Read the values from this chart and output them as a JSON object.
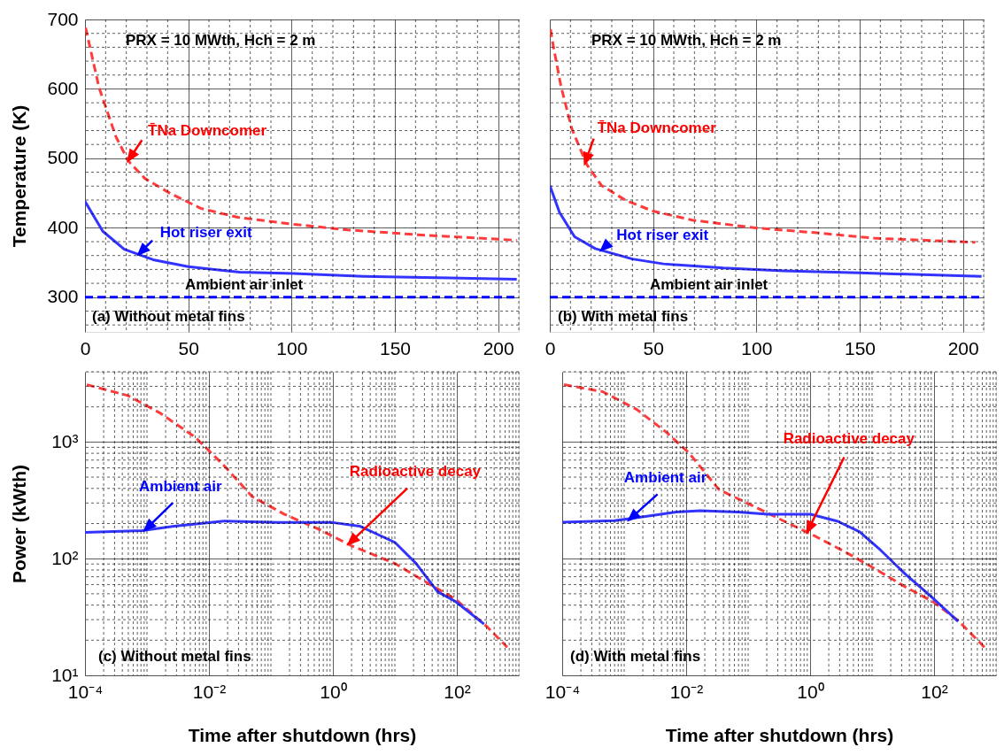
{
  "chart_data": [
    {
      "type": "line",
      "ylabel": "Temperature (K)",
      "xlim": [
        0,
        210
      ],
      "xticks": [
        0,
        50,
        100,
        150,
        200
      ],
      "ylim": [
        250,
        700
      ],
      "yticks": [
        300,
        400,
        500,
        600,
        700
      ],
      "grid": true,
      "line_style": "solid",
      "series": [
        {
          "color": "#ff3b3b",
          "line_style": "dashed",
          "x": [
            0.3,
            6.8,
            15,
            21,
            29,
            41,
            56,
            74,
            101,
            127,
            161,
            209
          ],
          "values": [
            688,
            602,
            531,
            496,
            471,
            450,
            428,
            415,
            405,
            397,
            390,
            382
          ]
        },
        {
          "color": "#3333ff",
          "x": [
            0,
            8.6,
            19,
            33,
            50,
            75,
            101,
            135,
            170,
            209
          ],
          "values": [
            438,
            395,
            369,
            354,
            344,
            336,
            334,
            330,
            328,
            326
          ]
        },
        {
          "color": "#0000ff",
          "line_style": "dashed",
          "x": [
            0,
            209
          ],
          "values": [
            300,
            300
          ]
        }
      ],
      "annotations": [
        "PRX = 10 MWth, Hch = 2 m",
        {
          "text": "T̄Na Downcomer",
          "x": 21,
          "y": 497
        },
        {
          "text": "Hot riser exit",
          "x": 26,
          "y": 362
        },
        {
          "text": "Ambient air inlet",
          "x": 77,
          "y": 300
        },
        "(a) Without metal fins"
      ]
    },
    {
      "type": "line",
      "xlim": [
        0,
        210
      ],
      "xticks": [
        0,
        50,
        100,
        150,
        200
      ],
      "ylim": [
        250,
        700
      ],
      "yticks": [
        300,
        400,
        500,
        600,
        700
      ],
      "grid": true,
      "tick_labels": "x",
      "line_style": "solid",
      "series": [
        {
          "color": "#ff3b3b",
          "line_style": "dashed",
          "x": [
            0.3,
            1.8,
            5.4,
            10.6,
            17.9,
            25,
            37,
            50,
            69,
            99,
            128,
            157,
            206
          ],
          "values": [
            686,
            660,
            604,
            543,
            491,
            461,
            439,
            424,
            411,
            400,
            393,
            385,
            379
          ]
        },
        {
          "color": "#3333ff",
          "x": [
            0,
            4.7,
            12,
            22,
            40,
            55,
            84,
            113,
            150,
            209
          ],
          "values": [
            461,
            422,
            387,
            370,
            355,
            348,
            342,
            338,
            335,
            330
          ]
        },
        {
          "color": "#0000ff",
          "line_style": "dashed",
          "x": [
            0,
            209
          ],
          "values": [
            300,
            300
          ]
        }
      ],
      "annotations": [
        "PRX = 10 MWth, Hch = 2 m",
        {
          "text": "T̄Na Downcomer",
          "x": 17,
          "y": 493
        },
        {
          "text": "Hot riser exit",
          "x": 25,
          "y": 368
        },
        {
          "text": "Ambient air inlet",
          "x": 77,
          "y": 300
        },
        "(b) With metal fins"
      ]
    },
    {
      "type": "line",
      "xlabel": "Time after shutdown (hrs)",
      "ylabel": "Power (kWth)",
      "log": "xy",
      "xlim": [
        0.0001,
        1000
      ],
      "xticks": [
        {
          "value": 0.0001,
          "label": "10⁻⁴"
        },
        {
          "value": 0.01,
          "label": "10⁻²"
        },
        {
          "value": 1,
          "label": "10⁰"
        },
        {
          "value": 100,
          "label": "10²"
        }
      ],
      "ylim": [
        10,
        4000
      ],
      "yticks": [
        {
          "value": 10,
          "label": "10¹"
        },
        {
          "value": 100,
          "label": "10²"
        },
        {
          "value": 1000,
          "label": "10³"
        }
      ],
      "grid": true,
      "line_style": "solid",
      "series": [
        {
          "color": "#ff3b3b",
          "line_style": "dashed",
          "x": [
            0.000107,
            0.00049,
            0.0016,
            0.006,
            0.0174,
            0.05,
            0.166,
            0.55,
            2.0,
            10,
            37,
            95,
            310,
            650
          ],
          "values": [
            3100,
            2500,
            1780,
            1100,
            630,
            340,
            240,
            182,
            129,
            91,
            60,
            45,
            26,
            17.4
          ]
        },
        {
          "color": "#3333ff",
          "x": [
            0.0001,
            0.00083,
            0.00275,
            0.0174,
            0.126,
            1.0,
            2.7,
            10,
            22,
            49,
            95,
            275
          ],
          "values": [
            168,
            174,
            190,
            210,
            204,
            204,
            190,
            138,
            91,
            52,
            43,
            27.5
          ]
        }
      ],
      "annotations": [
        {
          "text": "Ambient air",
          "x": 0.00093,
          "y": 176
        },
        {
          "text": "Radioactive decay",
          "x": 1.8,
          "y": 134
        },
        "(c) Without metal fins"
      ]
    },
    {
      "type": "line",
      "xlabel": "Time after shutdown (hrs)",
      "log": "xy",
      "xlim": [
        0.0001,
        1000
      ],
      "xticks": [
        {
          "value": 0.0001,
          "label": "10⁻⁴"
        },
        {
          "value": 0.01,
          "label": "10⁻²"
        },
        {
          "value": 1,
          "label": "10⁰"
        },
        {
          "value": 100,
          "label": "10²"
        }
      ],
      "ylim": [
        10,
        4000
      ],
      "yticks": [
        10,
        100,
        1000
      ],
      "grid": true,
      "tick_labels": "x",
      "line_style": "solid",
      "series": [
        {
          "color": "#ff3b3b",
          "line_style": "dashed",
          "x": [
            0.000107,
            0.00045,
            0.0016,
            0.0049,
            0.011,
            0.034,
            0.135,
            0.42,
            1.02,
            3.6,
            11.5,
            35,
            98,
            245,
            680
          ],
          "values": [
            3100,
            2700,
            1900,
            1200,
            810,
            390,
            275,
            204,
            163,
            115,
            81,
            57,
            42.5,
            29.5,
            17
          ]
        },
        {
          "color": "#3333ff",
          "x": [
            0.0001,
            0.0007,
            0.0022,
            0.0069,
            0.017,
            0.068,
            0.21,
            1.02,
            2.8,
            6.3,
            13.8,
            35,
            87,
            245
          ],
          "values": [
            205,
            212,
            230,
            251,
            258,
            251,
            240,
            240,
            209,
            170,
            118,
            73,
            48,
            29
          ]
        }
      ],
      "annotations": [
        {
          "text": "Ambient air",
          "x": 0.0012,
          "y": 215
        },
        {
          "text": "Radioactive decay",
          "x": 0.9,
          "y": 170
        },
        "(d) With metal fins"
      ]
    }
  ]
}
